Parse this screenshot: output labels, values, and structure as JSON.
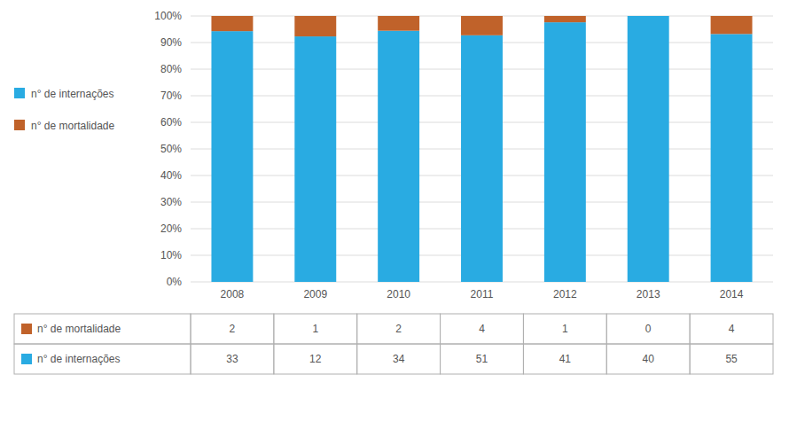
{
  "chart_data": {
    "type": "bar",
    "stacked": true,
    "categories": [
      "2008",
      "2009",
      "2010",
      "2011",
      "2012",
      "2013",
      "2014"
    ],
    "series": [
      {
        "name": "n° de internações",
        "color": "#29ABE2",
        "values": [
          0.9428571428571428,
          0.9230769230769231,
          0.9444444444444444,
          0.9272727272727272,
          0.9761904761904762,
          1,
          0.9322033898305084
        ]
      },
      {
        "name": "n° de mortalidade",
        "color": "#C0622A",
        "values": [
          0.05714285714285714,
          0.07692307692307693,
          0.05555555555555555,
          0.07272727272727272,
          0.023809523809523808,
          0,
          0.06779661016949153
        ]
      }
    ],
    "ylim": [
      0,
      1.0
    ],
    "yticks": [
      {
        "value": 0.0,
        "label": "0%"
      },
      {
        "value": 0.1,
        "label": "10%"
      },
      {
        "value": 0.2,
        "label": "20%"
      },
      {
        "value": 0.3,
        "label": "30%"
      },
      {
        "value": 0.4,
        "label": "40%"
      },
      {
        "value": 0.5,
        "label": "50%"
      },
      {
        "value": 0.6,
        "label": "60%"
      },
      {
        "value": 0.7,
        "label": "70%"
      },
      {
        "value": 0.8,
        "label": "80%"
      },
      {
        "value": 0.9,
        "label": "90%"
      },
      {
        "value": 1.0,
        "label": "100%"
      }
    ],
    "grid": true,
    "legend": "left",
    "table": [
      {
        "name": "n° de mortalidade",
        "color": "#C0622A",
        "values": [
          2,
          1,
          2,
          4,
          1,
          0,
          4
        ]
      },
      {
        "name": "n° de internações",
        "color": "#29ABE2",
        "values": [
          33,
          12,
          34,
          51,
          41,
          40,
          55
        ]
      }
    ]
  }
}
